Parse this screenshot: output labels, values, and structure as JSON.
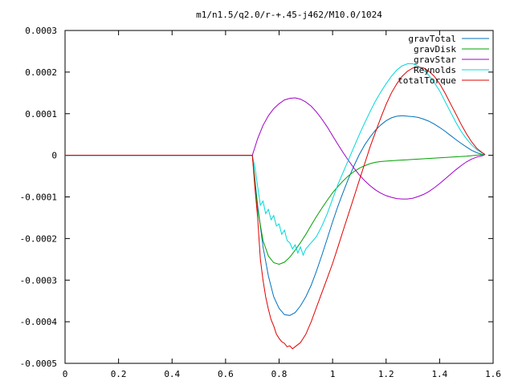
{
  "chart_data": {
    "type": "line",
    "title": "m1/n1.5/q2.0/r-+.45-j462/M10.0/1024",
    "xlabel": "",
    "ylabel": "",
    "xlim": [
      0,
      1.6
    ],
    "ylim": [
      -0.0005,
      0.0003
    ],
    "x_ticks": [
      0,
      0.2,
      0.4,
      0.6,
      0.8,
      1,
      1.2,
      1.4,
      1.6
    ],
    "x_tick_labels": [
      "0",
      "0.2",
      "0.4",
      "0.6",
      "0.8",
      "1",
      "1.2",
      "1.4",
      "1.6"
    ],
    "y_ticks": [
      0.0003,
      0.0002,
      0.0001,
      0,
      -0.0001,
      -0.0002,
      -0.0003,
      -0.0004,
      -0.0005
    ],
    "y_tick_labels": [
      "0.0003",
      "0.0002",
      "0.0001",
      "0",
      "-0.0001",
      "-0.0002",
      "-0.0003",
      "-0.0004",
      "-0.0005"
    ],
    "grid": false,
    "legend_position": "top-right",
    "series": [
      {
        "name": "gravTotal",
        "color": "#0072bd",
        "x": [
          0,
          0.7,
          0.72,
          0.74,
          0.76,
          0.78,
          0.8,
          0.82,
          0.84,
          0.86,
          0.88,
          0.9,
          0.92,
          0.94,
          0.96,
          0.98,
          1.0,
          1.02,
          1.04,
          1.06,
          1.08,
          1.1,
          1.12,
          1.14,
          1.16,
          1.18,
          1.2,
          1.22,
          1.24,
          1.26,
          1.28,
          1.3,
          1.32,
          1.34,
          1.36,
          1.38,
          1.4,
          1.42,
          1.44,
          1.46,
          1.48,
          1.5,
          1.52,
          1.54,
          1.56,
          1.57
        ],
        "y": [
          0,
          0,
          -0.00012,
          -0.00022,
          -0.00029,
          -0.00034,
          -0.000368,
          -0.000383,
          -0.000385,
          -0.000378,
          -0.000362,
          -0.00034,
          -0.000312,
          -0.000278,
          -0.00024,
          -0.0002,
          -0.00016,
          -0.000122,
          -8.8e-05,
          -5.5e-05,
          -2.5e-05,
          2e-06,
          2.5e-05,
          4.4e-05,
          6e-05,
          7.3e-05,
          8.3e-05,
          9e-05,
          9.4e-05,
          9.5e-05,
          9.4e-05,
          9.3e-05,
          9.1e-05,
          8.7e-05,
          8.2e-05,
          7.5e-05,
          6.7e-05,
          5.8e-05,
          4.8e-05,
          3.8e-05,
          2.9e-05,
          2e-05,
          1.2e-05,
          6e-06,
          2e-06,
          1e-06
        ]
      },
      {
        "name": "gravDisk",
        "color": "#00a000",
        "x": [
          0,
          0.7,
          0.72,
          0.74,
          0.76,
          0.78,
          0.8,
          0.82,
          0.84,
          0.86,
          0.88,
          0.9,
          0.92,
          0.94,
          0.96,
          0.98,
          1.0,
          1.02,
          1.04,
          1.06,
          1.08,
          1.1,
          1.12,
          1.14,
          1.16,
          1.18,
          1.2,
          1.25,
          1.3,
          1.35,
          1.4,
          1.45,
          1.5,
          1.55,
          1.57
        ],
        "y": [
          0,
          0,
          -0.00013,
          -0.000205,
          -0.000242,
          -0.000258,
          -0.000262,
          -0.000257,
          -0.000245,
          -0.000228,
          -0.00021,
          -0.00019,
          -0.000168,
          -0.000147,
          -0.000127,
          -0.000108,
          -9e-05,
          -7.5e-05,
          -6.1e-05,
          -4.9e-05,
          -3.9e-05,
          -3.1e-05,
          -2.5e-05,
          -2e-05,
          -1.7e-05,
          -1.5e-05,
          -1.4e-05,
          -1.2e-05,
          -1e-05,
          -8e-06,
          -6e-06,
          -4e-06,
          -2e-06,
          1e-06,
          2e-06
        ]
      },
      {
        "name": "gravStar",
        "color": "#a000c8",
        "x": [
          0,
          0.7,
          0.72,
          0.74,
          0.76,
          0.78,
          0.8,
          0.82,
          0.84,
          0.86,
          0.88,
          0.9,
          0.92,
          0.94,
          0.96,
          0.98,
          1.0,
          1.02,
          1.04,
          1.06,
          1.08,
          1.1,
          1.12,
          1.14,
          1.16,
          1.18,
          1.2,
          1.22,
          1.24,
          1.26,
          1.28,
          1.3,
          1.32,
          1.34,
          1.36,
          1.38,
          1.4,
          1.42,
          1.44,
          1.46,
          1.48,
          1.5,
          1.52,
          1.54,
          1.56,
          1.57
        ],
        "y": [
          0,
          0,
          4e-05,
          7.2e-05,
          9.5e-05,
          0.000112,
          0.000124,
          0.000133,
          0.000137,
          0.000138,
          0.000135,
          0.000128,
          0.000118,
          0.000104,
          8.7e-05,
          6.8e-05,
          4.7e-05,
          2.6e-05,
          6e-06,
          -1.3e-05,
          -3.1e-05,
          -4.7e-05,
          -6.1e-05,
          -7.3e-05,
          -8.3e-05,
          -9.1e-05,
          -9.7e-05,
          -0.000101,
          -0.000104,
          -0.000105,
          -0.000105,
          -0.000103,
          -9.9e-05,
          -9.4e-05,
          -8.7e-05,
          -7.8e-05,
          -6.8e-05,
          -5.7e-05,
          -4.6e-05,
          -3.5e-05,
          -2.5e-05,
          -1.6e-05,
          -9e-06,
          -4e-06,
          -1e-06,
          2e-06
        ]
      },
      {
        "name": "Reynolds",
        "color": "#00d8d8",
        "x": [
          0,
          0.7,
          0.71,
          0.72,
          0.73,
          0.74,
          0.75,
          0.76,
          0.77,
          0.78,
          0.79,
          0.8,
          0.81,
          0.82,
          0.83,
          0.84,
          0.85,
          0.86,
          0.87,
          0.88,
          0.89,
          0.9,
          0.92,
          0.94,
          0.96,
          0.98,
          1.0,
          1.02,
          1.04,
          1.06,
          1.08,
          1.1,
          1.12,
          1.14,
          1.16,
          1.18,
          1.2,
          1.22,
          1.24,
          1.26,
          1.28,
          1.3,
          1.32,
          1.34,
          1.36,
          1.38,
          1.4,
          1.42,
          1.44,
          1.46,
          1.48,
          1.5,
          1.52,
          1.54,
          1.56,
          1.57
        ],
        "y": [
          0,
          0,
          -3e-05,
          -7.5e-05,
          -0.00012,
          -0.00011,
          -0.00014,
          -0.00013,
          -0.000155,
          -0.000145,
          -0.00017,
          -0.000165,
          -0.00019,
          -0.00018,
          -0.000205,
          -0.00021,
          -0.000225,
          -0.000215,
          -0.000235,
          -0.00022,
          -0.00024,
          -0.000225,
          -0.00021,
          -0.000195,
          -0.00017,
          -0.00014,
          -0.000105,
          -7e-05,
          -4e-05,
          -1e-05,
          2e-05,
          5e-05,
          7.8e-05,
          0.000105,
          0.00013,
          0.000152,
          0.000172,
          0.00019,
          0.000205,
          0.000215,
          0.00022,
          0.00022,
          0.000214,
          0.000205,
          0.000192,
          0.000175,
          0.000155,
          0.00013,
          0.000105,
          8e-05,
          5.8e-05,
          4e-05,
          2.5e-05,
          1.3e-05,
          5e-06,
          1e-06
        ]
      },
      {
        "name": "totalTorque",
        "color": "#e00000",
        "x": [
          0,
          0.7,
          0.71,
          0.72,
          0.73,
          0.74,
          0.75,
          0.76,
          0.77,
          0.78,
          0.79,
          0.8,
          0.81,
          0.82,
          0.83,
          0.84,
          0.85,
          0.86,
          0.87,
          0.88,
          0.89,
          0.9,
          0.92,
          0.94,
          0.96,
          0.98,
          1.0,
          1.02,
          1.04,
          1.06,
          1.08,
          1.1,
          1.12,
          1.14,
          1.16,
          1.18,
          1.2,
          1.22,
          1.24,
          1.26,
          1.28,
          1.3,
          1.32,
          1.34,
          1.36,
          1.38,
          1.4,
          1.42,
          1.44,
          1.46,
          1.48,
          1.5,
          1.52,
          1.54,
          1.56,
          1.57
        ],
        "y": [
          0,
          0,
          -8e-05,
          -0.00015,
          -0.00025,
          -0.0003,
          -0.00034,
          -0.00037,
          -0.000395,
          -0.00041,
          -0.00043,
          -0.00044,
          -0.000448,
          -0.000452,
          -0.00046,
          -0.000458,
          -0.000465,
          -0.00046,
          -0.000455,
          -0.00045,
          -0.00044,
          -0.00043,
          -0.0004,
          -0.000365,
          -0.00033,
          -0.000295,
          -0.00026,
          -0.00022,
          -0.00018,
          -0.00014,
          -0.0001,
          -6e-05,
          -2e-05,
          2e-05,
          5.5e-05,
          9e-05,
          0.000122,
          0.00015,
          0.000172,
          0.00019,
          0.000202,
          0.00021,
          0.000212,
          0.00021,
          0.000202,
          0.00019,
          0.000172,
          0.00015,
          0.000125,
          0.0001,
          7.5e-05,
          5.2e-05,
          3.2e-05,
          1.6e-05,
          6e-06,
          2e-06
        ]
      }
    ]
  }
}
